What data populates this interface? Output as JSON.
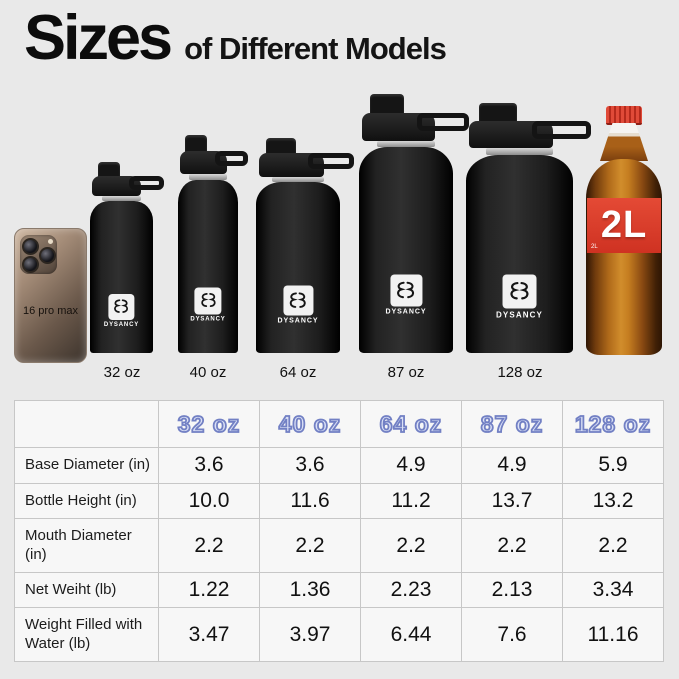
{
  "title": {
    "main": "Sizes",
    "sub": "of Different Models"
  },
  "brand": "DYSANCY",
  "phone": {
    "label": "16 pro max"
  },
  "cola": {
    "label": "2L",
    "small_mark": "2L"
  },
  "lineup": {
    "sizes": [
      "32 oz",
      "40 oz",
      "64 oz",
      "87 oz",
      "128 oz"
    ]
  },
  "table": {
    "columns": [
      "32 oz",
      "40 oz",
      "64 oz",
      "87 oz",
      "128 oz"
    ],
    "rows": [
      {
        "label": "Base Diameter (in)",
        "values": [
          "3.6",
          "3.6",
          "4.9",
          "4.9",
          "5.9"
        ]
      },
      {
        "label": "Bottle Height (in)",
        "values": [
          "10.0",
          "11.6",
          "11.2",
          "13.7",
          "13.2"
        ]
      },
      {
        "label": "Mouth Diameter (in)",
        "values": [
          "2.2",
          "2.2",
          "2.2",
          "2.2",
          "2.2"
        ]
      },
      {
        "label": "Net Weiht (lb)",
        "values": [
          "1.22",
          "1.36",
          "2.23",
          "2.13",
          "3.34"
        ]
      },
      {
        "label": "Weight Filled with Water (lb)",
        "values": [
          "3.47",
          "3.97",
          "6.44",
          "7.6",
          "11.16"
        ]
      }
    ]
  },
  "colors": {
    "background": "#e9e9e9",
    "header_text_fill": "#dbe1f6",
    "header_text_stroke": "#7280c4",
    "bottle_black": "#161616",
    "cola_red": "#d63a2a"
  }
}
